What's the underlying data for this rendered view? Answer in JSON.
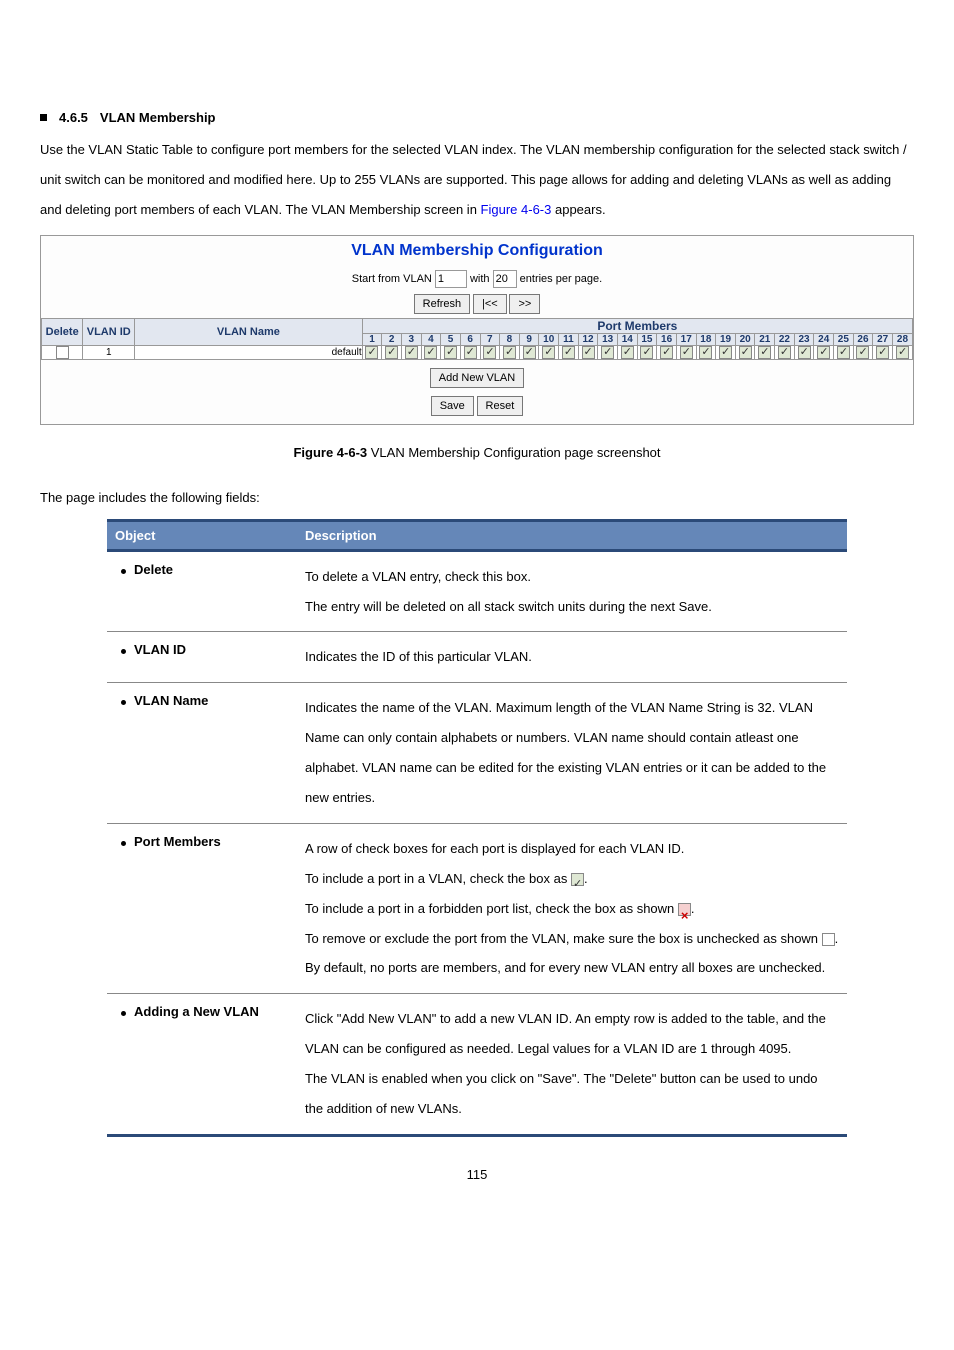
{
  "page_number": "115",
  "section": {
    "number": "4.6.5",
    "title": "VLAN Membership",
    "marker_color": "#000000"
  },
  "intro": {
    "text_parts": [
      "Use the VLAN Static Table to configure port members for the selected VLAN index. The VLAN membership configuration for the selected stack switch / unit switch can be monitored and modified here. Up to 255 VLANs are supported. This page allows for adding and deleting VLANs as well as adding and deleting port members of each VLAN. The VLAN Membership screen in ",
      "Figure 4-6-3",
      " appears."
    ],
    "link_color": "#0000ee"
  },
  "config": {
    "title": "VLAN Membership Configuration",
    "title_color": "#0033cc",
    "start_label": "Start from VLAN",
    "start_value": "1",
    "with_label": "with",
    "with_value": "20",
    "entries_label": "entries per page.",
    "refresh_btn": "Refresh",
    "prev_btn": "|<<",
    "next_btn": ">>",
    "pm_header": "Port Members",
    "cols": {
      "delete": "Delete",
      "vlan_id": "VLAN ID",
      "vlan_name": "VLAN Name"
    },
    "ports": [
      "1",
      "2",
      "3",
      "4",
      "5",
      "6",
      "7",
      "8",
      "9",
      "10",
      "11",
      "12",
      "13",
      "14",
      "15",
      "16",
      "17",
      "18",
      "19",
      "20",
      "21",
      "22",
      "23",
      "24",
      "25",
      "26",
      "27",
      "28"
    ],
    "row": {
      "vlan_id": "1",
      "vlan_name": "default"
    },
    "add_btn": "Add New VLAN",
    "save_btn": "Save",
    "reset_btn": "Reset",
    "header_bg": "#e2e7f0",
    "header_fg": "#1e3a6b",
    "figure_label": "Figure 4-6-3",
    "caption_rest": " VLAN Membership Configuration page screenshot"
  },
  "fields_intro": "The page includes the following fields:",
  "fields_headers": {
    "object": "Object",
    "description": "Description"
  },
  "fields_header_bg": "#6587b8",
  "fields_border_color": "#2b4a78",
  "fields": [
    {
      "object": "Delete",
      "description": "To delete a VLAN entry, check this box.\nThe entry will be deleted on all stack switch units during the next Save."
    },
    {
      "object": "VLAN ID",
      "description": "Indicates the ID of this particular VLAN."
    },
    {
      "object": "VLAN Name",
      "description": "Indicates the name of the VLAN. Maximum length of the VLAN Name String is 32. VLAN Name can only contain alphabets or numbers. VLAN name should contain atleast one alphabet. VLAN name can be edited for the existing VLAN entries or it can be added to the new entries."
    },
    {
      "object": "Port Members",
      "desc_parts": {
        "l1": "A row of check boxes for each port is displayed for each VLAN ID.",
        "l2a": "To include a port in a VLAN, check the box as ",
        "l2b": ".",
        "l3a": "To include a port in a forbidden port list, check the box as shown ",
        "l3b": ".",
        "l4a": "To remove or exclude the port from the VLAN, make sure the box is unchecked as shown ",
        "l4b": ".",
        "l5": "By default, no ports are members, and for every new VLAN entry all boxes are unchecked."
      }
    },
    {
      "object": "Adding a New VLAN",
      "description": "Click \"Add New VLAN\" to add a new VLAN ID. An empty row is added to the table, and the VLAN can be configured as needed. Legal values for a VLAN ID are 1 through 4095.\nThe VLAN is enabled when you click on \"Save\". The \"Delete\" button can be used to undo the addition of new VLANs."
    }
  ]
}
